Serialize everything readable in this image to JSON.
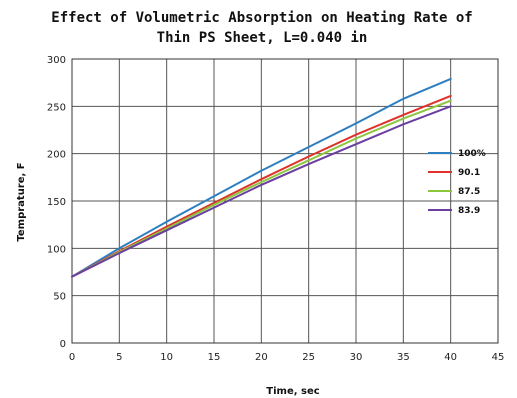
{
  "chart_data": {
    "type": "line",
    "title_lines": [
      "Effect of Volumetric Absorption on Heating Rate of",
      "Thin PS Sheet, L=0.040 in"
    ],
    "xlabel": "Time, sec",
    "ylabel": "Temprature, F",
    "xlim": [
      0,
      45
    ],
    "ylim": [
      0,
      300
    ],
    "xticks": [
      0,
      5,
      10,
      15,
      20,
      25,
      30,
      35,
      40,
      45
    ],
    "yticks": [
      0,
      50,
      100,
      150,
      200,
      250,
      300
    ],
    "grid": true,
    "legend_position": "right",
    "series": [
      {
        "name": "100%",
        "color": "#2e7fc1",
        "x": [
          0,
          5,
          10,
          15,
          20,
          25,
          30,
          35,
          40
        ],
        "y": [
          70,
          100,
          128,
          155,
          182,
          207,
          232,
          258,
          279
        ]
      },
      {
        "name": "90.1",
        "color": "#e0312a",
        "x": [
          0,
          5,
          10,
          15,
          20,
          25,
          30,
          35,
          40
        ],
        "y": [
          70,
          97,
          123,
          148,
          173,
          197,
          220,
          241,
          261
        ]
      },
      {
        "name": "87.5",
        "color": "#8cc63e",
        "x": [
          0,
          5,
          10,
          15,
          20,
          25,
          30,
          35,
          40
        ],
        "y": [
          70,
          96,
          121,
          146,
          170,
          193,
          216,
          237,
          256
        ]
      },
      {
        "name": "83.9",
        "color": "#6b3fa0",
        "x": [
          0,
          5,
          10,
          15,
          20,
          25,
          30,
          35,
          40
        ],
        "y": [
          70,
          95,
          119,
          143,
          167,
          189,
          210,
          231,
          250
        ]
      }
    ]
  }
}
